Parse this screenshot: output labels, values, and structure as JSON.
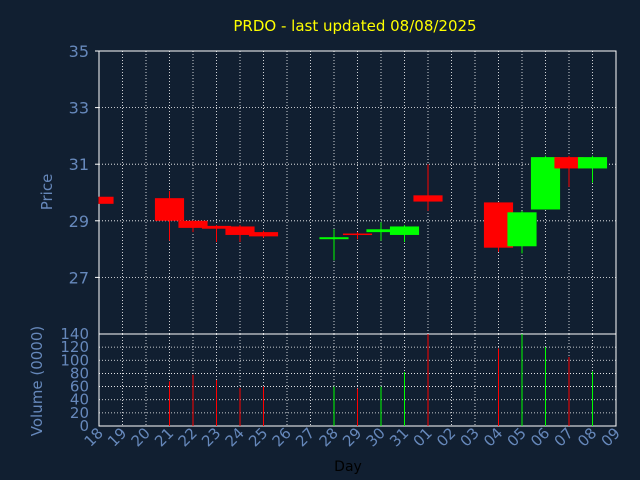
{
  "chart_data": [
    {
      "type": "candlestick",
      "title": "PRDO - last updated 08/08/2025",
      "ylabel": "Price",
      "ylim": [
        25,
        35
      ],
      "yticks": [
        "35",
        "33",
        "31",
        "29",
        "27"
      ],
      "grid": true,
      "colors": {
        "up": "#00ff00",
        "down": "#ff0000",
        "title": "#ffff00",
        "axis_text": "#6688bb",
        "grid": "#ffffff",
        "background": "#111f31"
      },
      "candles": [
        {
          "day": "18",
          "open": 29.85,
          "high": 29.85,
          "low": 29.6,
          "close": 29.6
        },
        {
          "day": "21",
          "open": 29.8,
          "high": 30.05,
          "low": 28.3,
          "close": 29.0
        },
        {
          "day": "22",
          "open": 29.0,
          "high": 29.0,
          "low": 28.6,
          "close": 28.75
        },
        {
          "day": "23",
          "open": 28.82,
          "high": 28.85,
          "low": 28.25,
          "close": 28.72
        },
        {
          "day": "24",
          "open": 28.8,
          "high": 28.85,
          "low": 28.25,
          "close": 28.5
        },
        {
          "day": "25",
          "open": 28.6,
          "high": 28.65,
          "low": 28.4,
          "close": 28.45
        },
        {
          "day": "28",
          "open": 28.35,
          "high": 28.7,
          "low": 27.6,
          "close": 28.42
        },
        {
          "day": "29",
          "open": 28.55,
          "high": 28.6,
          "low": 28.35,
          "close": 28.5
        },
        {
          "day": "30",
          "open": 28.6,
          "high": 28.95,
          "low": 28.3,
          "close": 28.7
        },
        {
          "day": "31",
          "open": 28.5,
          "high": 28.85,
          "low": 28.25,
          "close": 28.8
        },
        {
          "day": "01",
          "open": 29.9,
          "high": 31.0,
          "low": 29.35,
          "close": 29.68
        },
        {
          "day": "04",
          "open": 29.65,
          "high": 29.65,
          "low": 27.9,
          "close": 28.05
        },
        {
          "day": "05",
          "open": 28.1,
          "high": 29.35,
          "low": 27.85,
          "close": 29.3
        },
        {
          "day": "06",
          "open": 29.4,
          "high": 31.3,
          "low": 29.4,
          "close": 31.25
        },
        {
          "day": "07",
          "open": 31.25,
          "high": 31.3,
          "low": 30.2,
          "close": 30.85
        },
        {
          "day": "08",
          "open": 30.85,
          "high": 31.3,
          "low": 30.35,
          "close": 31.25
        }
      ]
    },
    {
      "type": "bar",
      "ylabel": "Volume (0000)",
      "xlabel": "Day",
      "ylim": [
        0,
        140
      ],
      "yticks": [
        "140",
        "120",
        "100",
        "80",
        "60",
        "40",
        "20",
        "0"
      ],
      "categories": [
        "18",
        "19",
        "20",
        "21",
        "22",
        "23",
        "24",
        "25",
        "26",
        "27",
        "28",
        "29",
        "30",
        "31",
        "01",
        "02",
        "03",
        "04",
        "05",
        "06",
        "07",
        "08",
        "09"
      ],
      "volumes": [
        {
          "day": "21",
          "value": 68,
          "direction": "down"
        },
        {
          "day": "22",
          "value": 78,
          "direction": "down"
        },
        {
          "day": "23",
          "value": 70,
          "direction": "down"
        },
        {
          "day": "24",
          "value": 58,
          "direction": "down"
        },
        {
          "day": "25",
          "value": 60,
          "direction": "down"
        },
        {
          "day": "28",
          "value": 60,
          "direction": "up"
        },
        {
          "day": "29",
          "value": 57,
          "direction": "down"
        },
        {
          "day": "30",
          "value": 60,
          "direction": "up"
        },
        {
          "day": "31",
          "value": 82,
          "direction": "up"
        },
        {
          "day": "01",
          "value": 140,
          "direction": "down"
        },
        {
          "day": "04",
          "value": 118,
          "direction": "down"
        },
        {
          "day": "05",
          "value": 140,
          "direction": "up"
        },
        {
          "day": "06",
          "value": 120,
          "direction": "up"
        },
        {
          "day": "07",
          "value": 105,
          "direction": "down"
        },
        {
          "day": "08",
          "value": 83,
          "direction": "up"
        }
      ]
    }
  ]
}
